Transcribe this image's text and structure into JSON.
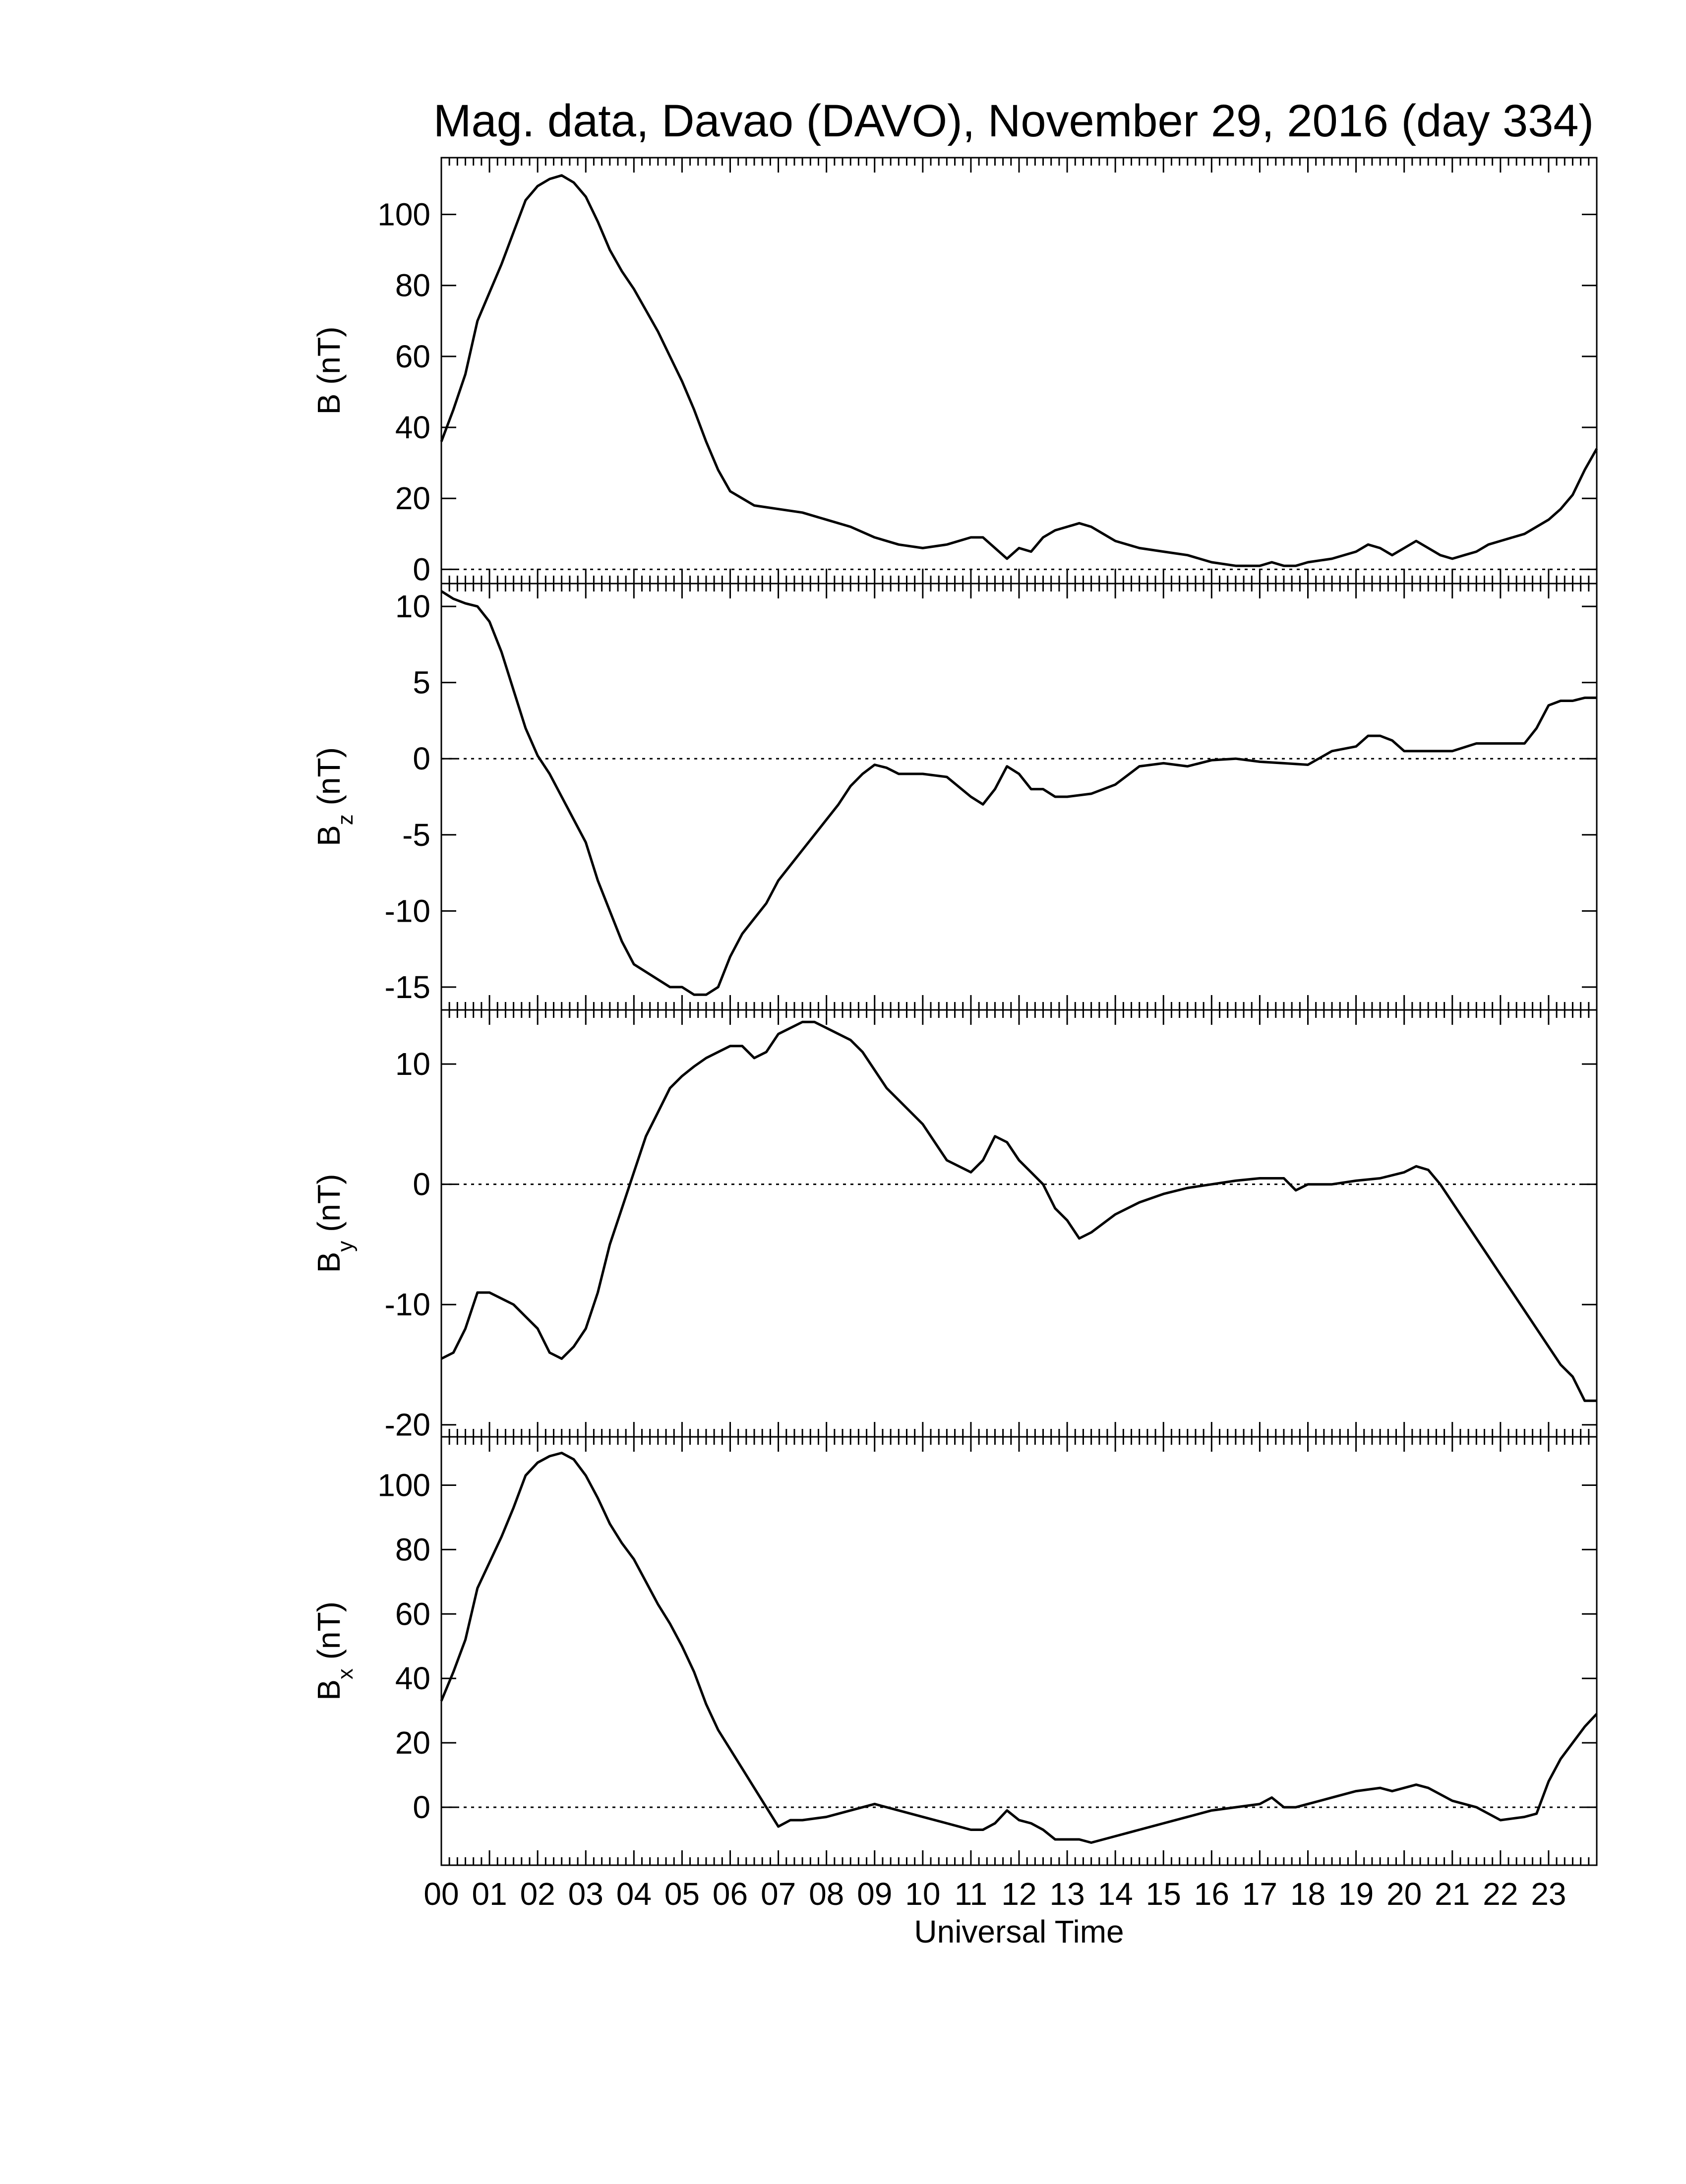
{
  "figure": {
    "title": "Mag. data, Davao (DAVO), November 29, 2016 (day 334)",
    "xlabel": "Universal Time",
    "x_tick_labels": [
      "00",
      "01",
      "02",
      "03",
      "04",
      "05",
      "06",
      "07",
      "08",
      "09",
      "10",
      "11",
      "12",
      "13",
      "14",
      "15",
      "16",
      "17",
      "18",
      "19",
      "20",
      "21",
      "22",
      "23"
    ],
    "line_color": "#000000",
    "zero_line_style": "dotted"
  },
  "chart_data": [
    {
      "type": "line",
      "panel": "B",
      "ylabel_main": "B",
      "ylabel_sub": "",
      "ylabel_unit": "(nT)",
      "xlim": [
        0,
        24
      ],
      "ylim": [
        -4,
        116
      ],
      "yticks": [
        0,
        20,
        40,
        60,
        80,
        100
      ],
      "zero_line": true,
      "x": [
        0,
        0.25,
        0.5,
        0.75,
        1.0,
        1.25,
        1.5,
        1.75,
        2.0,
        2.25,
        2.5,
        2.75,
        3.0,
        3.25,
        3.5,
        3.75,
        4.0,
        4.25,
        4.5,
        4.75,
        5.0,
        5.25,
        5.5,
        5.75,
        6.0,
        6.25,
        6.5,
        7.0,
        7.5,
        8.0,
        8.5,
        9.0,
        9.5,
        10.0,
        10.5,
        11.0,
        11.25,
        11.5,
        11.75,
        12.0,
        12.25,
        12.5,
        12.75,
        13.0,
        13.25,
        13.5,
        13.75,
        14.0,
        14.5,
        15.0,
        15.5,
        16.0,
        16.5,
        17.0,
        17.25,
        17.5,
        17.75,
        18.0,
        18.5,
        19.0,
        19.25,
        19.5,
        19.75,
        20.0,
        20.25,
        20.5,
        20.75,
        21.0,
        21.25,
        21.5,
        21.75,
        22.0,
        22.5,
        23.0,
        23.25,
        23.5,
        23.75,
        24.0
      ],
      "values": [
        36,
        45,
        55,
        70,
        78,
        86,
        95,
        104,
        108,
        110,
        111,
        109,
        105,
        98,
        90,
        84,
        79,
        73,
        67,
        60,
        53,
        45,
        36,
        28,
        22,
        20,
        18,
        17,
        16,
        14,
        12,
        9,
        7,
        6,
        7,
        9,
        9,
        6,
        3,
        6,
        5,
        9,
        11,
        12,
        13,
        12,
        10,
        8,
        6,
        5,
        4,
        2,
        1,
        1,
        2,
        1,
        1,
        2,
        3,
        5,
        7,
        6,
        4,
        6,
        8,
        6,
        4,
        3,
        4,
        5,
        7,
        8,
        10,
        14,
        17,
        21,
        28,
        34
      ]
    },
    {
      "type": "line",
      "panel": "Bz",
      "ylabel_main": "B",
      "ylabel_sub": "z",
      "ylabel_unit": "(nT)",
      "xlim": [
        0,
        24
      ],
      "ylim": [
        -16.5,
        11.5
      ],
      "yticks": [
        -15,
        -10,
        -5,
        0,
        5,
        10
      ],
      "zero_line": true,
      "x": [
        0,
        0.25,
        0.5,
        0.75,
        1.0,
        1.25,
        1.5,
        1.75,
        2.0,
        2.25,
        2.5,
        2.75,
        3.0,
        3.25,
        3.5,
        3.75,
        4.0,
        4.25,
        4.5,
        4.75,
        5.0,
        5.25,
        5.5,
        5.75,
        6.0,
        6.25,
        6.5,
        6.75,
        7.0,
        7.25,
        7.5,
        7.75,
        8.0,
        8.25,
        8.5,
        8.75,
        9.0,
        9.25,
        9.5,
        10.0,
        10.5,
        11.0,
        11.25,
        11.5,
        11.75,
        12.0,
        12.25,
        12.5,
        12.75,
        13.0,
        13.5,
        14.0,
        14.5,
        15.0,
        15.5,
        16.0,
        16.5,
        17.0,
        17.5,
        18.0,
        18.5,
        19.0,
        19.25,
        19.5,
        19.75,
        20.0,
        20.5,
        21.0,
        21.5,
        22.0,
        22.5,
        22.75,
        23.0,
        23.25,
        23.5,
        23.75,
        24.0
      ],
      "values": [
        11,
        10.5,
        10.2,
        10,
        9,
        7,
        4.5,
        2,
        0.2,
        -1,
        -2.5,
        -4,
        -5.5,
        -8,
        -10,
        -12,
        -13.5,
        -14,
        -14.5,
        -15,
        -15,
        -15.5,
        -15.5,
        -15,
        -13,
        -11.5,
        -10.5,
        -9.5,
        -8,
        -7,
        -6,
        -5,
        -4,
        -3,
        -1.8,
        -1,
        -0.4,
        -0.6,
        -1,
        -1,
        -1.2,
        -2.5,
        -3,
        -2,
        -0.5,
        -1,
        -2,
        -2,
        -2.5,
        -2.5,
        -2.3,
        -1.7,
        -0.5,
        -0.3,
        -0.5,
        -0.1,
        0,
        -0.2,
        -0.3,
        -0.4,
        0.5,
        0.8,
        1.5,
        1.5,
        1.2,
        0.5,
        0.5,
        0.5,
        1,
        1,
        1,
        2,
        3.5,
        3.8,
        3.8,
        4,
        4
      ]
    },
    {
      "type": "line",
      "panel": "By",
      "ylabel_main": "B",
      "ylabel_sub": "y",
      "ylabel_unit": "(nT)",
      "xlim": [
        0,
        24
      ],
      "ylim": [
        -21,
        14.5
      ],
      "yticks": [
        -20,
        -10,
        0,
        10
      ],
      "zero_line": true,
      "x": [
        0,
        0.25,
        0.5,
        0.75,
        1.0,
        1.25,
        1.5,
        1.75,
        2.0,
        2.25,
        2.5,
        2.75,
        3.0,
        3.25,
        3.5,
        3.75,
        4.0,
        4.25,
        4.5,
        4.75,
        5.0,
        5.25,
        5.5,
        5.75,
        6.0,
        6.25,
        6.5,
        6.75,
        7.0,
        7.25,
        7.5,
        7.75,
        8.0,
        8.25,
        8.5,
        8.75,
        9.0,
        9.25,
        9.5,
        10.0,
        10.5,
        11.0,
        11.25,
        11.5,
        11.75,
        12.0,
        12.25,
        12.5,
        12.75,
        13.0,
        13.25,
        13.5,
        14.0,
        14.5,
        15.0,
        15.5,
        16.0,
        16.5,
        17.0,
        17.25,
        17.5,
        17.75,
        18.0,
        18.5,
        19.0,
        19.5,
        20.0,
        20.25,
        20.5,
        20.75,
        21.0,
        21.25,
        21.5,
        21.75,
        22.0,
        22.5,
        23.0,
        23.25,
        23.5,
        23.75,
        24.0
      ],
      "values": [
        -14.5,
        -14,
        -12,
        -9,
        -9,
        -9.5,
        -10,
        -11,
        -12,
        -14,
        -14.5,
        -13.5,
        -12,
        -9,
        -5,
        -2,
        1,
        4,
        6,
        8,
        9,
        9.8,
        10.5,
        11,
        11.5,
        11.5,
        10.5,
        11,
        12.5,
        13,
        13.5,
        13.5,
        13,
        12.5,
        12,
        11,
        9.5,
        8,
        7,
        5,
        2,
        1,
        2,
        4,
        3.5,
        2,
        1,
        0,
        -2,
        -3,
        -4.5,
        -4,
        -2.5,
        -1.5,
        -0.8,
        -0.3,
        0,
        0.3,
        0.5,
        0.5,
        0.5,
        -0.5,
        0,
        0,
        0.3,
        0.5,
        1,
        1.5,
        1.2,
        0,
        -1.5,
        -3,
        -4.5,
        -6,
        -7.5,
        -10.5,
        -13.5,
        -15,
        -16,
        -18,
        -18
      ]
    },
    {
      "type": "line",
      "panel": "Bx",
      "ylabel_main": "B",
      "ylabel_sub": "x",
      "ylabel_unit": "(nT)",
      "xlim": [
        0,
        24
      ],
      "ylim": [
        -18,
        115
      ],
      "yticks": [
        0,
        20,
        40,
        60,
        80,
        100
      ],
      "zero_line": true,
      "x": [
        0,
        0.25,
        0.5,
        0.75,
        1.0,
        1.25,
        1.5,
        1.75,
        2.0,
        2.25,
        2.5,
        2.75,
        3.0,
        3.25,
        3.5,
        3.75,
        4.0,
        4.25,
        4.5,
        4.75,
        5.0,
        5.25,
        5.5,
        5.75,
        6.0,
        6.25,
        6.5,
        6.75,
        7.0,
        7.25,
        7.5,
        8.0,
        8.5,
        9.0,
        9.5,
        10.0,
        10.5,
        11.0,
        11.25,
        11.5,
        11.75,
        12.0,
        12.25,
        12.5,
        12.75,
        13.0,
        13.25,
        13.5,
        13.75,
        14.0,
        14.5,
        15.0,
        15.5,
        16.0,
        16.5,
        17.0,
        17.25,
        17.5,
        17.75,
        18.0,
        18.5,
        19.0,
        19.5,
        19.75,
        20.0,
        20.25,
        20.5,
        20.75,
        21.0,
        21.5,
        21.75,
        22.0,
        22.5,
        22.75,
        23.0,
        23.25,
        23.5,
        23.75,
        24.0
      ],
      "values": [
        33,
        42,
        52,
        68,
        76,
        84,
        93,
        103,
        107,
        109,
        110,
        108,
        103,
        96,
        88,
        82,
        77,
        70,
        63,
        57,
        50,
        42,
        32,
        24,
        18,
        12,
        6,
        0,
        -6,
        -4,
        -4,
        -3,
        -1,
        1,
        -1,
        -3,
        -5,
        -7,
        -7,
        -5,
        -1,
        -4,
        -5,
        -7,
        -10,
        -10,
        -10,
        -11,
        -10,
        -9,
        -7,
        -5,
        -3,
        -1,
        0,
        1,
        3,
        0,
        0,
        1,
        3,
        5,
        6,
        5,
        6,
        7,
        6,
        4,
        2,
        0,
        -2,
        -4,
        -3,
        -2,
        8,
        15,
        20,
        25,
        29
      ]
    }
  ]
}
